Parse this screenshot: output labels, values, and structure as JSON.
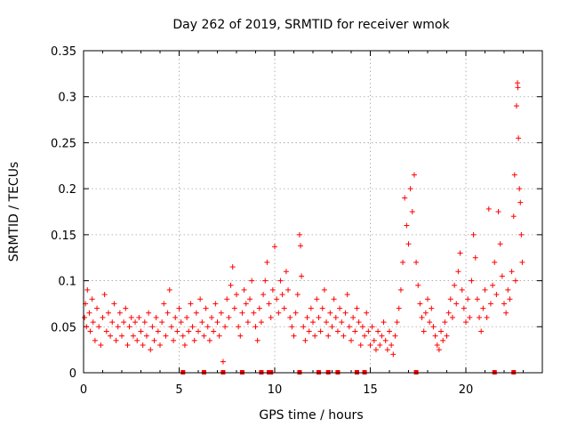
{
  "chart_data": {
    "type": "scatter",
    "title": "Day 262 of 2019, SRMTID for receiver wmok",
    "xlabel": "GPS time / hours",
    "ylabel": "SRMTID / TECUs",
    "xlim": [
      0,
      24
    ],
    "ylim": [
      0,
      0.35
    ],
    "xticks": [
      0,
      5,
      10,
      15,
      20
    ],
    "xtick_labels": [
      "0",
      "5",
      "10",
      "15",
      "20"
    ],
    "yticks": [
      0,
      0.05,
      0.1,
      0.15,
      0.2,
      0.25,
      0.3,
      0.35
    ],
    "ytick_labels": [
      "0",
      "0.05",
      "0.1",
      "0.15",
      "0.2",
      "0.25",
      "0.3",
      "0.35"
    ],
    "grid": true,
    "marker": "+",
    "color": "#ff0000",
    "series": [
      {
        "name": "SRMTID",
        "points": [
          [
            0.05,
            0.06
          ],
          [
            0.1,
            0.075
          ],
          [
            0.15,
            0.05
          ],
          [
            0.2,
            0.09
          ],
          [
            0.3,
            0.065
          ],
          [
            0.35,
            0.045
          ],
          [
            0.45,
            0.08
          ],
          [
            0.5,
            0.055
          ],
          [
            0.6,
            0.035
          ],
          [
            0.7,
            0.07
          ],
          [
            0.8,
            0.05
          ],
          [
            0.9,
            0.03
          ],
          [
            1.0,
            0.06
          ],
          [
            1.1,
            0.085
          ],
          [
            1.2,
            0.045
          ],
          [
            1.3,
            0.065
          ],
          [
            1.4,
            0.04
          ],
          [
            1.5,
            0.055
          ],
          [
            1.6,
            0.075
          ],
          [
            1.7,
            0.035
          ],
          [
            1.8,
            0.05
          ],
          [
            1.9,
            0.065
          ],
          [
            2.0,
            0.04
          ],
          [
            2.1,
            0.055
          ],
          [
            2.2,
            0.07
          ],
          [
            2.3,
            0.03
          ],
          [
            2.4,
            0.05
          ],
          [
            2.5,
            0.06
          ],
          [
            2.6,
            0.04
          ],
          [
            2.7,
            0.055
          ],
          [
            2.8,
            0.035
          ],
          [
            2.9,
            0.06
          ],
          [
            3.0,
            0.045
          ],
          [
            3.1,
            0.03
          ],
          [
            3.2,
            0.055
          ],
          [
            3.3,
            0.04
          ],
          [
            3.4,
            0.065
          ],
          [
            3.5,
            0.025
          ],
          [
            3.6,
            0.05
          ],
          [
            3.7,
            0.035
          ],
          [
            3.8,
            0.06
          ],
          [
            3.9,
            0.045
          ],
          [
            4.0,
            0.03
          ],
          [
            4.1,
            0.055
          ],
          [
            4.2,
            0.075
          ],
          [
            4.3,
            0.04
          ],
          [
            4.4,
            0.065
          ],
          [
            4.5,
            0.09
          ],
          [
            4.6,
            0.05
          ],
          [
            4.7,
            0.035
          ],
          [
            4.8,
            0.06
          ],
          [
            4.9,
            0.045
          ],
          [
            5.0,
            0.07
          ],
          [
            5.1,
            0.055
          ],
          [
            5.2,
            0.04
          ],
          [
            5.3,
            0.03
          ],
          [
            5.4,
            0.06
          ],
          [
            5.5,
            0.045
          ],
          [
            5.6,
            0.075
          ],
          [
            5.7,
            0.05
          ],
          [
            5.8,
            0.035
          ],
          [
            5.9,
            0.065
          ],
          [
            6.0,
            0.045
          ],
          [
            6.1,
            0.08
          ],
          [
            6.2,
            0.055
          ],
          [
            6.3,
            0.04
          ],
          [
            6.4,
            0.07
          ],
          [
            6.5,
            0.05
          ],
          [
            6.6,
            0.035
          ],
          [
            6.7,
            0.06
          ],
          [
            6.8,
            0.045
          ],
          [
            6.9,
            0.075
          ],
          [
            7.0,
            0.055
          ],
          [
            7.1,
            0.04
          ],
          [
            7.2,
            0.065
          ],
          [
            7.3,
            0.012
          ],
          [
            7.4,
            0.05
          ],
          [
            7.5,
            0.08
          ],
          [
            7.6,
            0.06
          ],
          [
            7.7,
            0.095
          ],
          [
            7.8,
            0.115
          ],
          [
            7.9,
            0.07
          ],
          [
            8.0,
            0.085
          ],
          [
            8.1,
            0.05
          ],
          [
            8.2,
            0.04
          ],
          [
            8.3,
            0.065
          ],
          [
            8.4,
            0.09
          ],
          [
            8.5,
            0.075
          ],
          [
            8.6,
            0.055
          ],
          [
            8.7,
            0.08
          ],
          [
            8.8,
            0.1
          ],
          [
            8.9,
            0.065
          ],
          [
            9.0,
            0.05
          ],
          [
            9.1,
            0.035
          ],
          [
            9.2,
            0.07
          ],
          [
            9.3,
            0.055
          ],
          [
            9.4,
            0.085
          ],
          [
            9.5,
            0.1
          ],
          [
            9.6,
            0.12
          ],
          [
            9.7,
            0.075
          ],
          [
            9.8,
            0.06
          ],
          [
            9.9,
            0.09
          ],
          [
            10.0,
            0.137
          ],
          [
            10.1,
            0.08
          ],
          [
            10.2,
            0.065
          ],
          [
            10.3,
            0.1
          ],
          [
            10.4,
            0.085
          ],
          [
            10.5,
            0.07
          ],
          [
            10.6,
            0.11
          ],
          [
            10.7,
            0.09
          ],
          [
            10.8,
            0.06
          ],
          [
            10.9,
            0.05
          ],
          [
            11.0,
            0.04
          ],
          [
            11.1,
            0.065
          ],
          [
            11.2,
            0.085
          ],
          [
            11.3,
            0.15
          ],
          [
            11.35,
            0.138
          ],
          [
            11.4,
            0.105
          ],
          [
            11.5,
            0.05
          ],
          [
            11.6,
            0.035
          ],
          [
            11.7,
            0.06
          ],
          [
            11.8,
            0.045
          ],
          [
            11.9,
            0.07
          ],
          [
            12.0,
            0.055
          ],
          [
            12.1,
            0.04
          ],
          [
            12.2,
            0.08
          ],
          [
            12.3,
            0.06
          ],
          [
            12.4,
            0.045
          ],
          [
            12.5,
            0.07
          ],
          [
            12.6,
            0.09
          ],
          [
            12.7,
            0.055
          ],
          [
            12.8,
            0.04
          ],
          [
            12.9,
            0.065
          ],
          [
            13.0,
            0.05
          ],
          [
            13.1,
            0.08
          ],
          [
            13.2,
            0.06
          ],
          [
            13.3,
            0.045
          ],
          [
            13.4,
            0.07
          ],
          [
            13.5,
            0.055
          ],
          [
            13.6,
            0.04
          ],
          [
            13.7,
            0.065
          ],
          [
            13.8,
            0.085
          ],
          [
            13.9,
            0.05
          ],
          [
            14.0,
            0.035
          ],
          [
            14.1,
            0.06
          ],
          [
            14.2,
            0.045
          ],
          [
            14.3,
            0.07
          ],
          [
            14.4,
            0.055
          ],
          [
            14.5,
            0.03
          ],
          [
            14.6,
            0.05
          ],
          [
            14.7,
            0.04
          ],
          [
            14.8,
            0.065
          ],
          [
            14.9,
            0.045
          ],
          [
            15.0,
            0.03
          ],
          [
            15.1,
            0.05
          ],
          [
            15.2,
            0.035
          ],
          [
            15.3,
            0.025
          ],
          [
            15.4,
            0.045
          ],
          [
            15.5,
            0.03
          ],
          [
            15.6,
            0.04
          ],
          [
            15.7,
            0.055
          ],
          [
            15.8,
            0.035
          ],
          [
            15.9,
            0.025
          ],
          [
            16.0,
            0.045
          ],
          [
            16.1,
            0.03
          ],
          [
            16.2,
            0.02
          ],
          [
            16.3,
            0.04
          ],
          [
            16.4,
            0.055
          ],
          [
            16.5,
            0.07
          ],
          [
            16.6,
            0.09
          ],
          [
            16.7,
            0.12
          ],
          [
            16.8,
            0.19
          ],
          [
            16.9,
            0.16
          ],
          [
            17.0,
            0.14
          ],
          [
            17.1,
            0.2
          ],
          [
            17.2,
            0.175
          ],
          [
            17.3,
            0.215
          ],
          [
            17.4,
            0.12
          ],
          [
            17.5,
            0.095
          ],
          [
            17.6,
            0.075
          ],
          [
            17.7,
            0.06
          ],
          [
            17.8,
            0.045
          ],
          [
            17.9,
            0.065
          ],
          [
            18.0,
            0.08
          ],
          [
            18.1,
            0.055
          ],
          [
            18.2,
            0.07
          ],
          [
            18.3,
            0.05
          ],
          [
            18.4,
            0.04
          ],
          [
            18.5,
            0.03
          ],
          [
            18.6,
            0.025
          ],
          [
            18.7,
            0.045
          ],
          [
            18.8,
            0.035
          ],
          [
            18.9,
            0.055
          ],
          [
            19.0,
            0.04
          ],
          [
            19.1,
            0.065
          ],
          [
            19.2,
            0.08
          ],
          [
            19.3,
            0.06
          ],
          [
            19.4,
            0.095
          ],
          [
            19.5,
            0.075
          ],
          [
            19.6,
            0.11
          ],
          [
            19.7,
            0.13
          ],
          [
            19.8,
            0.09
          ],
          [
            19.9,
            0.07
          ],
          [
            20.0,
            0.055
          ],
          [
            20.1,
            0.08
          ],
          [
            20.2,
            0.06
          ],
          [
            20.3,
            0.1
          ],
          [
            20.4,
            0.15
          ],
          [
            20.5,
            0.125
          ],
          [
            20.6,
            0.08
          ],
          [
            20.7,
            0.06
          ],
          [
            20.8,
            0.045
          ],
          [
            20.9,
            0.07
          ],
          [
            21.0,
            0.09
          ],
          [
            21.1,
            0.06
          ],
          [
            21.2,
            0.178
          ],
          [
            21.3,
            0.075
          ],
          [
            21.4,
            0.095
          ],
          [
            21.5,
            0.12
          ],
          [
            21.6,
            0.085
          ],
          [
            21.7,
            0.175
          ],
          [
            21.8,
            0.14
          ],
          [
            21.9,
            0.105
          ],
          [
            22.0,
            0.075
          ],
          [
            22.1,
            0.065
          ],
          [
            22.2,
            0.09
          ],
          [
            22.3,
            0.08
          ],
          [
            22.4,
            0.11
          ],
          [
            22.5,
            0.17
          ],
          [
            22.55,
            0.215
          ],
          [
            22.6,
            0.1
          ],
          [
            22.65,
            0.29
          ],
          [
            22.7,
            0.315
          ],
          [
            22.72,
            0.31
          ],
          [
            22.75,
            0.255
          ],
          [
            22.8,
            0.2
          ],
          [
            22.85,
            0.185
          ],
          [
            22.9,
            0.15
          ],
          [
            22.95,
            0.12
          ]
        ]
      }
    ],
    "gap_flags_x": [
      5.2,
      6.3,
      7.3,
      8.3,
      9.3,
      9.7,
      9.8,
      11.3,
      12.3,
      12.8,
      13.3,
      14.3,
      14.7,
      17.4,
      21.5,
      22.5
    ]
  }
}
